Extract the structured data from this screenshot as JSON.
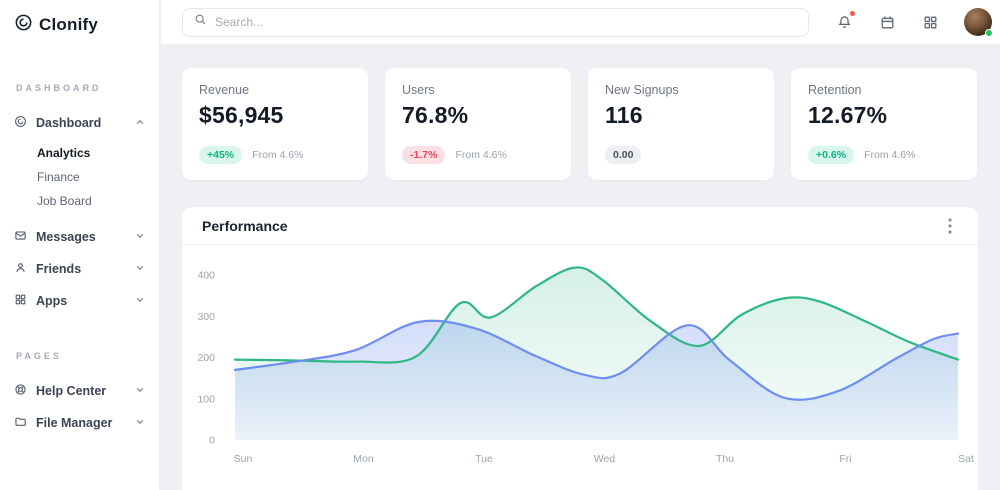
{
  "brand": {
    "name": "Clonify"
  },
  "topbar": {
    "search_placeholder": "Search...",
    "icons": [
      "bell-icon",
      "calendar-icon",
      "apps-grid-icon",
      "user-avatar"
    ],
    "notification_dot_color": "#f4564e",
    "status_dot_color": "#22c55e"
  },
  "sidebar": {
    "section_dashboard": "DASHBOARD",
    "section_pages": "PAGES",
    "dashboard": "Dashboard",
    "dashboard_children": [
      "Analytics",
      "Finance",
      "Job Board"
    ],
    "active_child": "Analytics",
    "messages": "Messages",
    "friends": "Friends",
    "apps": "Apps",
    "help_center": "Help Center",
    "file_manager": "File Manager"
  },
  "cards": [
    {
      "label": "Revenue",
      "value": "$56,945",
      "badge": "+45%",
      "badge_type": "up",
      "note": "From 4.6%"
    },
    {
      "label": "Users",
      "value": "76.8%",
      "badge": "-1.7%",
      "badge_type": "down",
      "note": "From 4.6%"
    },
    {
      "label": "New Signups",
      "value": "116",
      "badge": "0.00",
      "badge_type": "neutral",
      "note": ""
    },
    {
      "label": "Retention",
      "value": "12.67%",
      "badge": "+0.6%",
      "badge_type": "up",
      "note": "From 4.6%"
    }
  ],
  "chart_data": {
    "type": "area",
    "title": "Performance",
    "categories": [
      "Sun",
      "Mon",
      "Tue",
      "Wed",
      "Thu",
      "Fri",
      "Sat"
    ],
    "y_ticks": [
      0,
      100,
      200,
      300,
      400
    ],
    "ylim": [
      0,
      400
    ],
    "grid": false,
    "legend_position": "none",
    "series": [
      {
        "name": "series-green",
        "color": "#2db783",
        "fill_opacity": [
          0.2,
          0.03
        ],
        "points": [
          [
            0,
            195
          ],
          [
            0.45,
            193
          ],
          [
            1,
            190
          ],
          [
            1.5,
            202
          ],
          [
            1.87,
            332
          ],
          [
            2.12,
            297
          ],
          [
            2.5,
            373
          ],
          [
            2.82,
            418
          ],
          [
            3.05,
            388
          ],
          [
            3.45,
            288
          ],
          [
            3.85,
            228
          ],
          [
            4.2,
            303
          ],
          [
            4.55,
            343
          ],
          [
            4.85,
            336
          ],
          [
            5.25,
            285
          ],
          [
            5.6,
            237
          ],
          [
            6,
            195
          ]
        ]
      },
      {
        "name": "series-blue",
        "color": "#6d8ef0",
        "fill_opacity": [
          0.3,
          0.1
        ],
        "points": [
          [
            0,
            170
          ],
          [
            0.5,
            190
          ],
          [
            1,
            218
          ],
          [
            1.52,
            286
          ],
          [
            2,
            270
          ],
          [
            2.5,
            203
          ],
          [
            2.9,
            158
          ],
          [
            3.2,
            162
          ],
          [
            3.75,
            278
          ],
          [
            4.1,
            195
          ],
          [
            4.55,
            103
          ],
          [
            5,
            118
          ],
          [
            5.5,
            200
          ],
          [
            5.8,
            245
          ],
          [
            6,
            258
          ]
        ]
      }
    ]
  }
}
